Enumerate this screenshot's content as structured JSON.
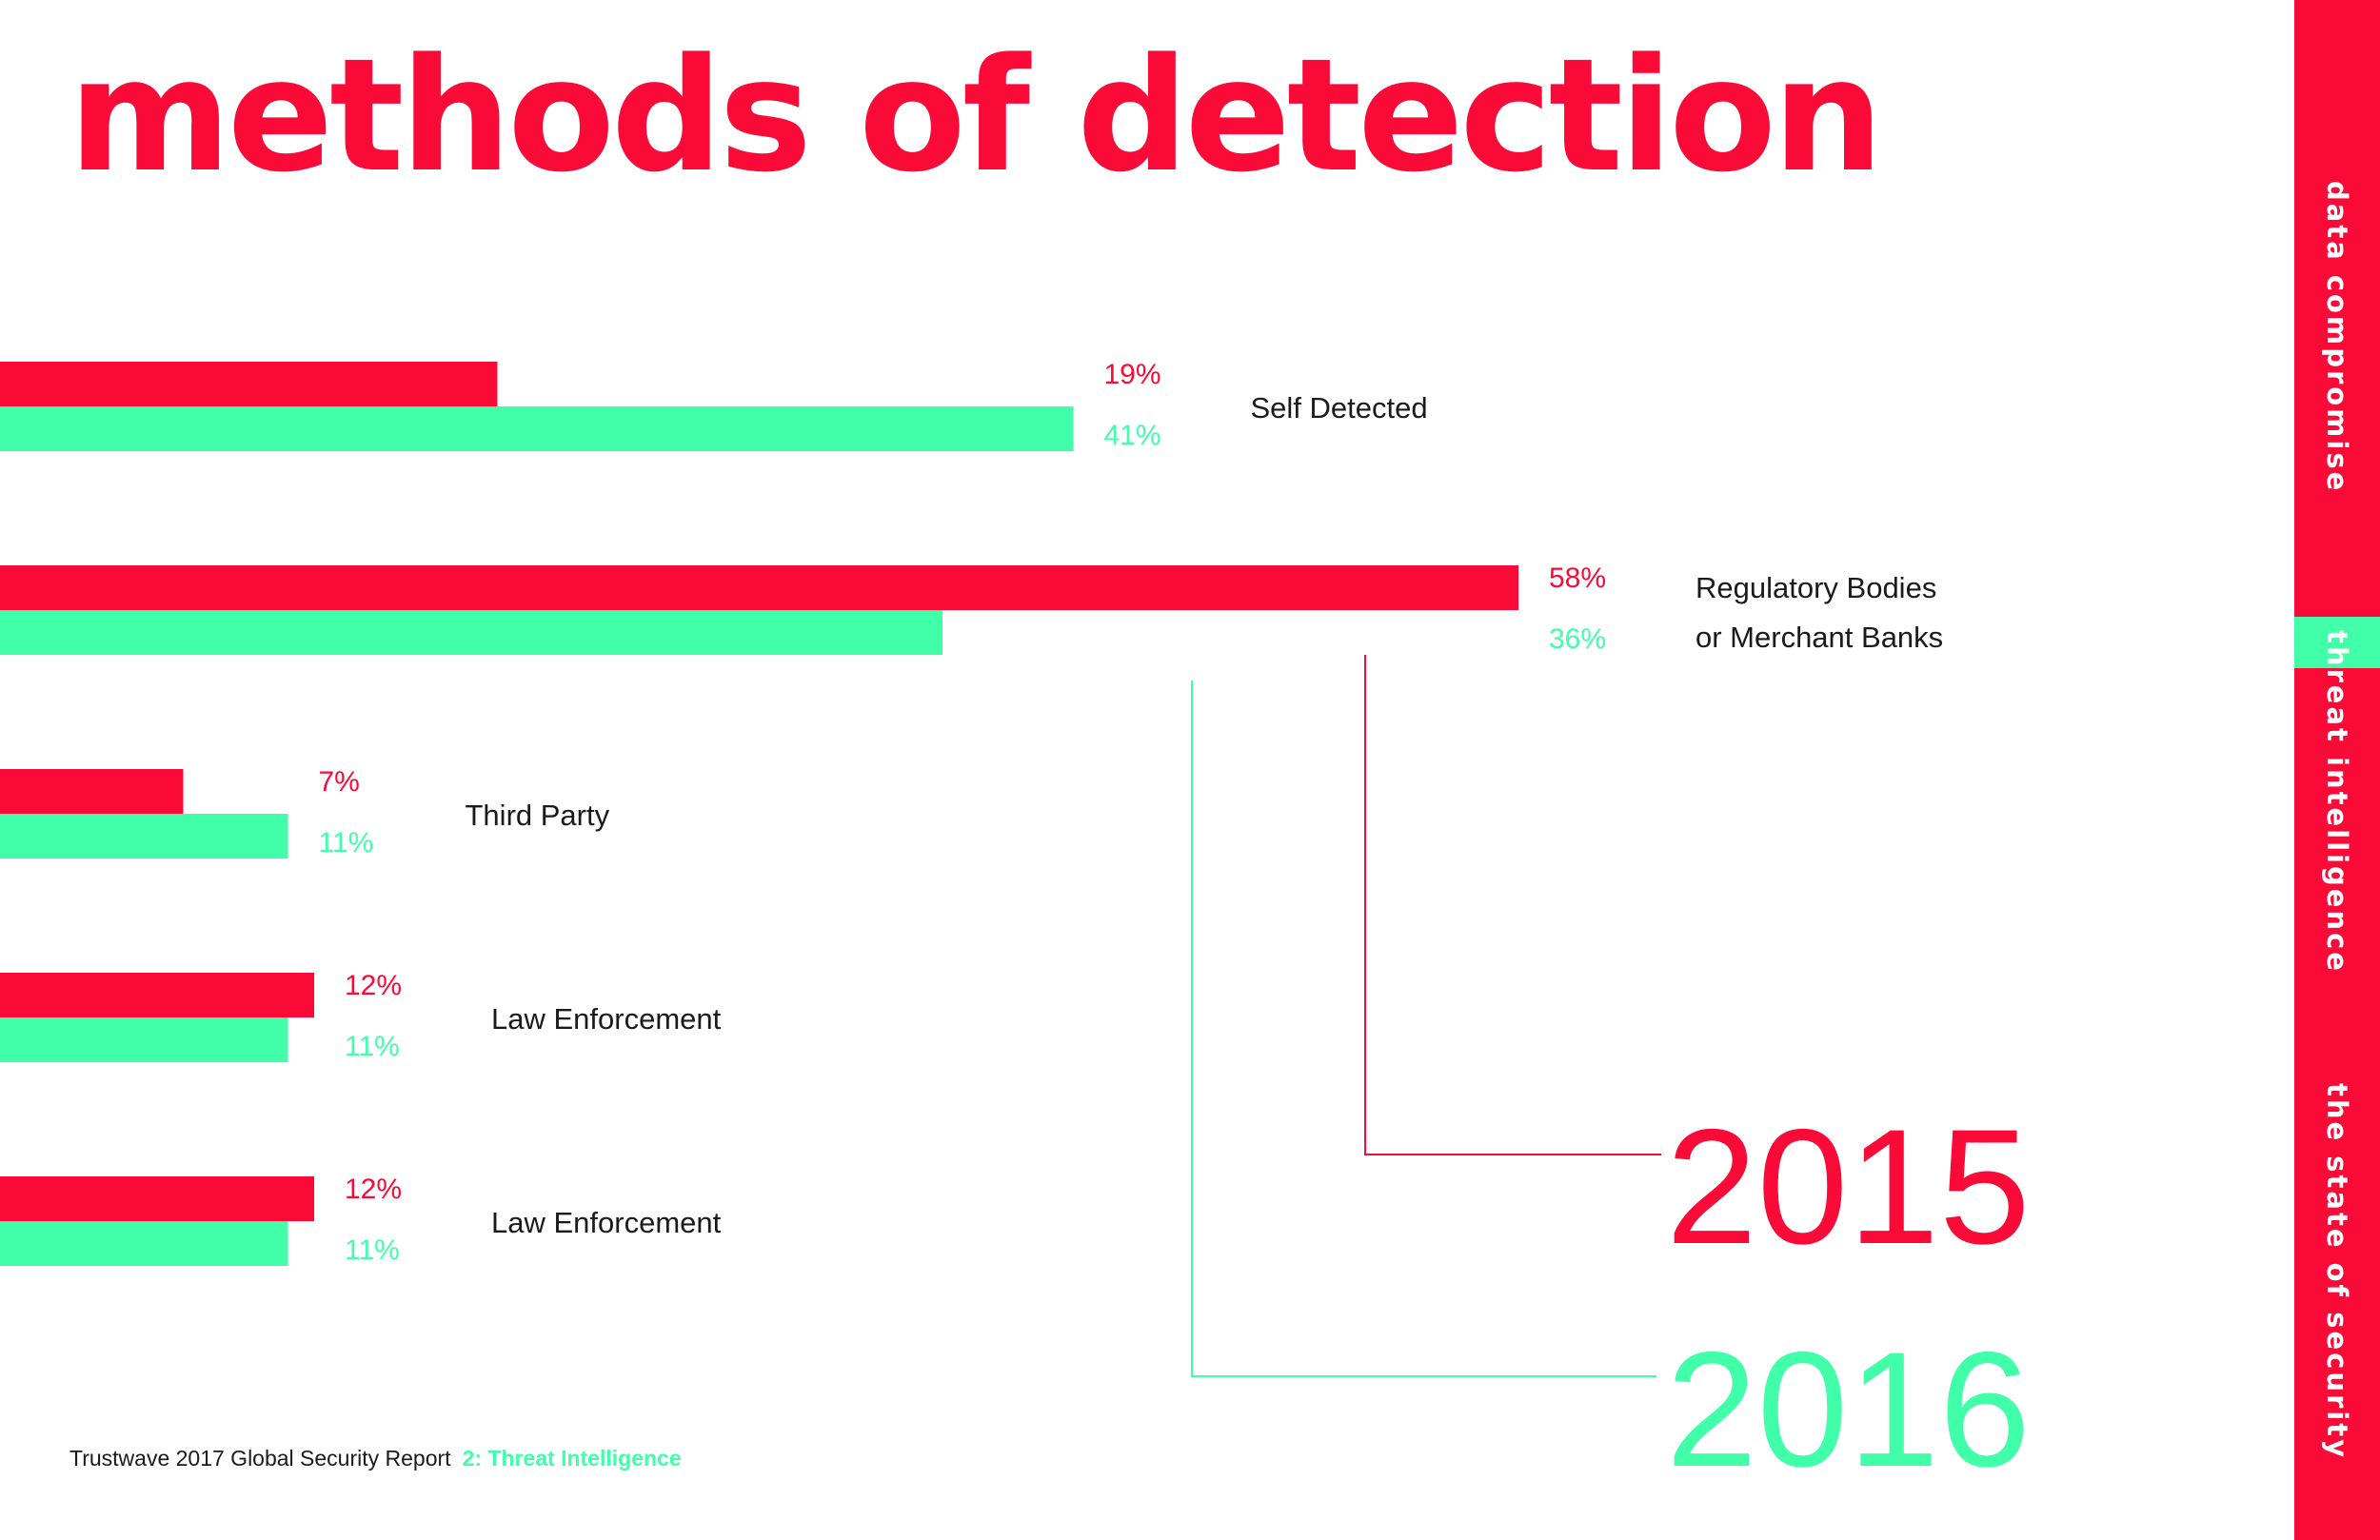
{
  "title": "methods of detection",
  "chart_data": {
    "type": "bar",
    "orientation": "horizontal",
    "categories": [
      [
        "Self Detected"
      ],
      [
        "Regulatory Bodies",
        "or Merchant Banks"
      ],
      [
        "Third Party"
      ],
      [
        "Law Enforcement"
      ],
      [
        "Law Enforcement"
      ]
    ],
    "series": [
      {
        "name": "2015",
        "color": "#fa0a37",
        "values": [
          19,
          58,
          7,
          12,
          12
        ],
        "labels": [
          "19%",
          "58%",
          "7%",
          "12%",
          "12%"
        ]
      },
      {
        "name": "2016",
        "color": "#41ffa9",
        "values": [
          41,
          36,
          11,
          11,
          11
        ],
        "labels": [
          "41%",
          "36%",
          "11%",
          "11%",
          "11%"
        ]
      }
    ],
    "unit": "%",
    "legend": "bottom-right, large year labels connected by lines",
    "grid": false
  },
  "footer": {
    "text": "Trustwave 2017 Global Security Report",
    "section": "2: Threat Intelligence"
  },
  "sidebar": {
    "labels": [
      "data compromise",
      "threat intelligence",
      "the state of security"
    ],
    "active_index": 1
  },
  "colors": {
    "red": "#fa0a37",
    "green": "#41ffa9",
    "text": "#1a1a1a"
  }
}
